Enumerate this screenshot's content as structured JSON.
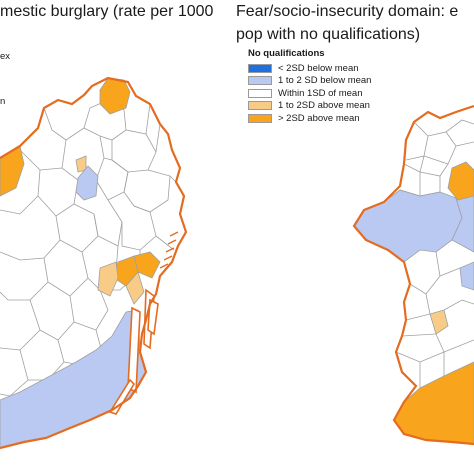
{
  "left_panel": {
    "title_line1": "mestic burglary (rate per 1000",
    "legend_fragments": [
      "ex",
      "n"
    ],
    "colors": {
      "border": "#e46b1f",
      "orange": "#f8a41c",
      "light_orange": "#f8cc86",
      "light_blue": "#b9c9f2",
      "blue": "#1e6fe0",
      "white": "#ffffff",
      "district_line": "#9e9e9e"
    }
  },
  "right_panel": {
    "title_line1": "Fear/socio-insecurity domain: e",
    "title_line2": "pop with no qualifications)",
    "legend": {
      "heading": "No qualifications",
      "items": [
        {
          "label": "< 2SD below mean",
          "color": "#1e6fe0"
        },
        {
          "label": "1 to 2 SD below mean",
          "color": "#b9c9f2"
        },
        {
          "label": "Within 1SD of mean",
          "color": "#ffffff"
        },
        {
          "label": "1 to 2SD above mean",
          "color": "#f8cc86"
        },
        {
          "label": "> 2SD above mean",
          "color": "#f8a41c"
        }
      ]
    }
  }
}
